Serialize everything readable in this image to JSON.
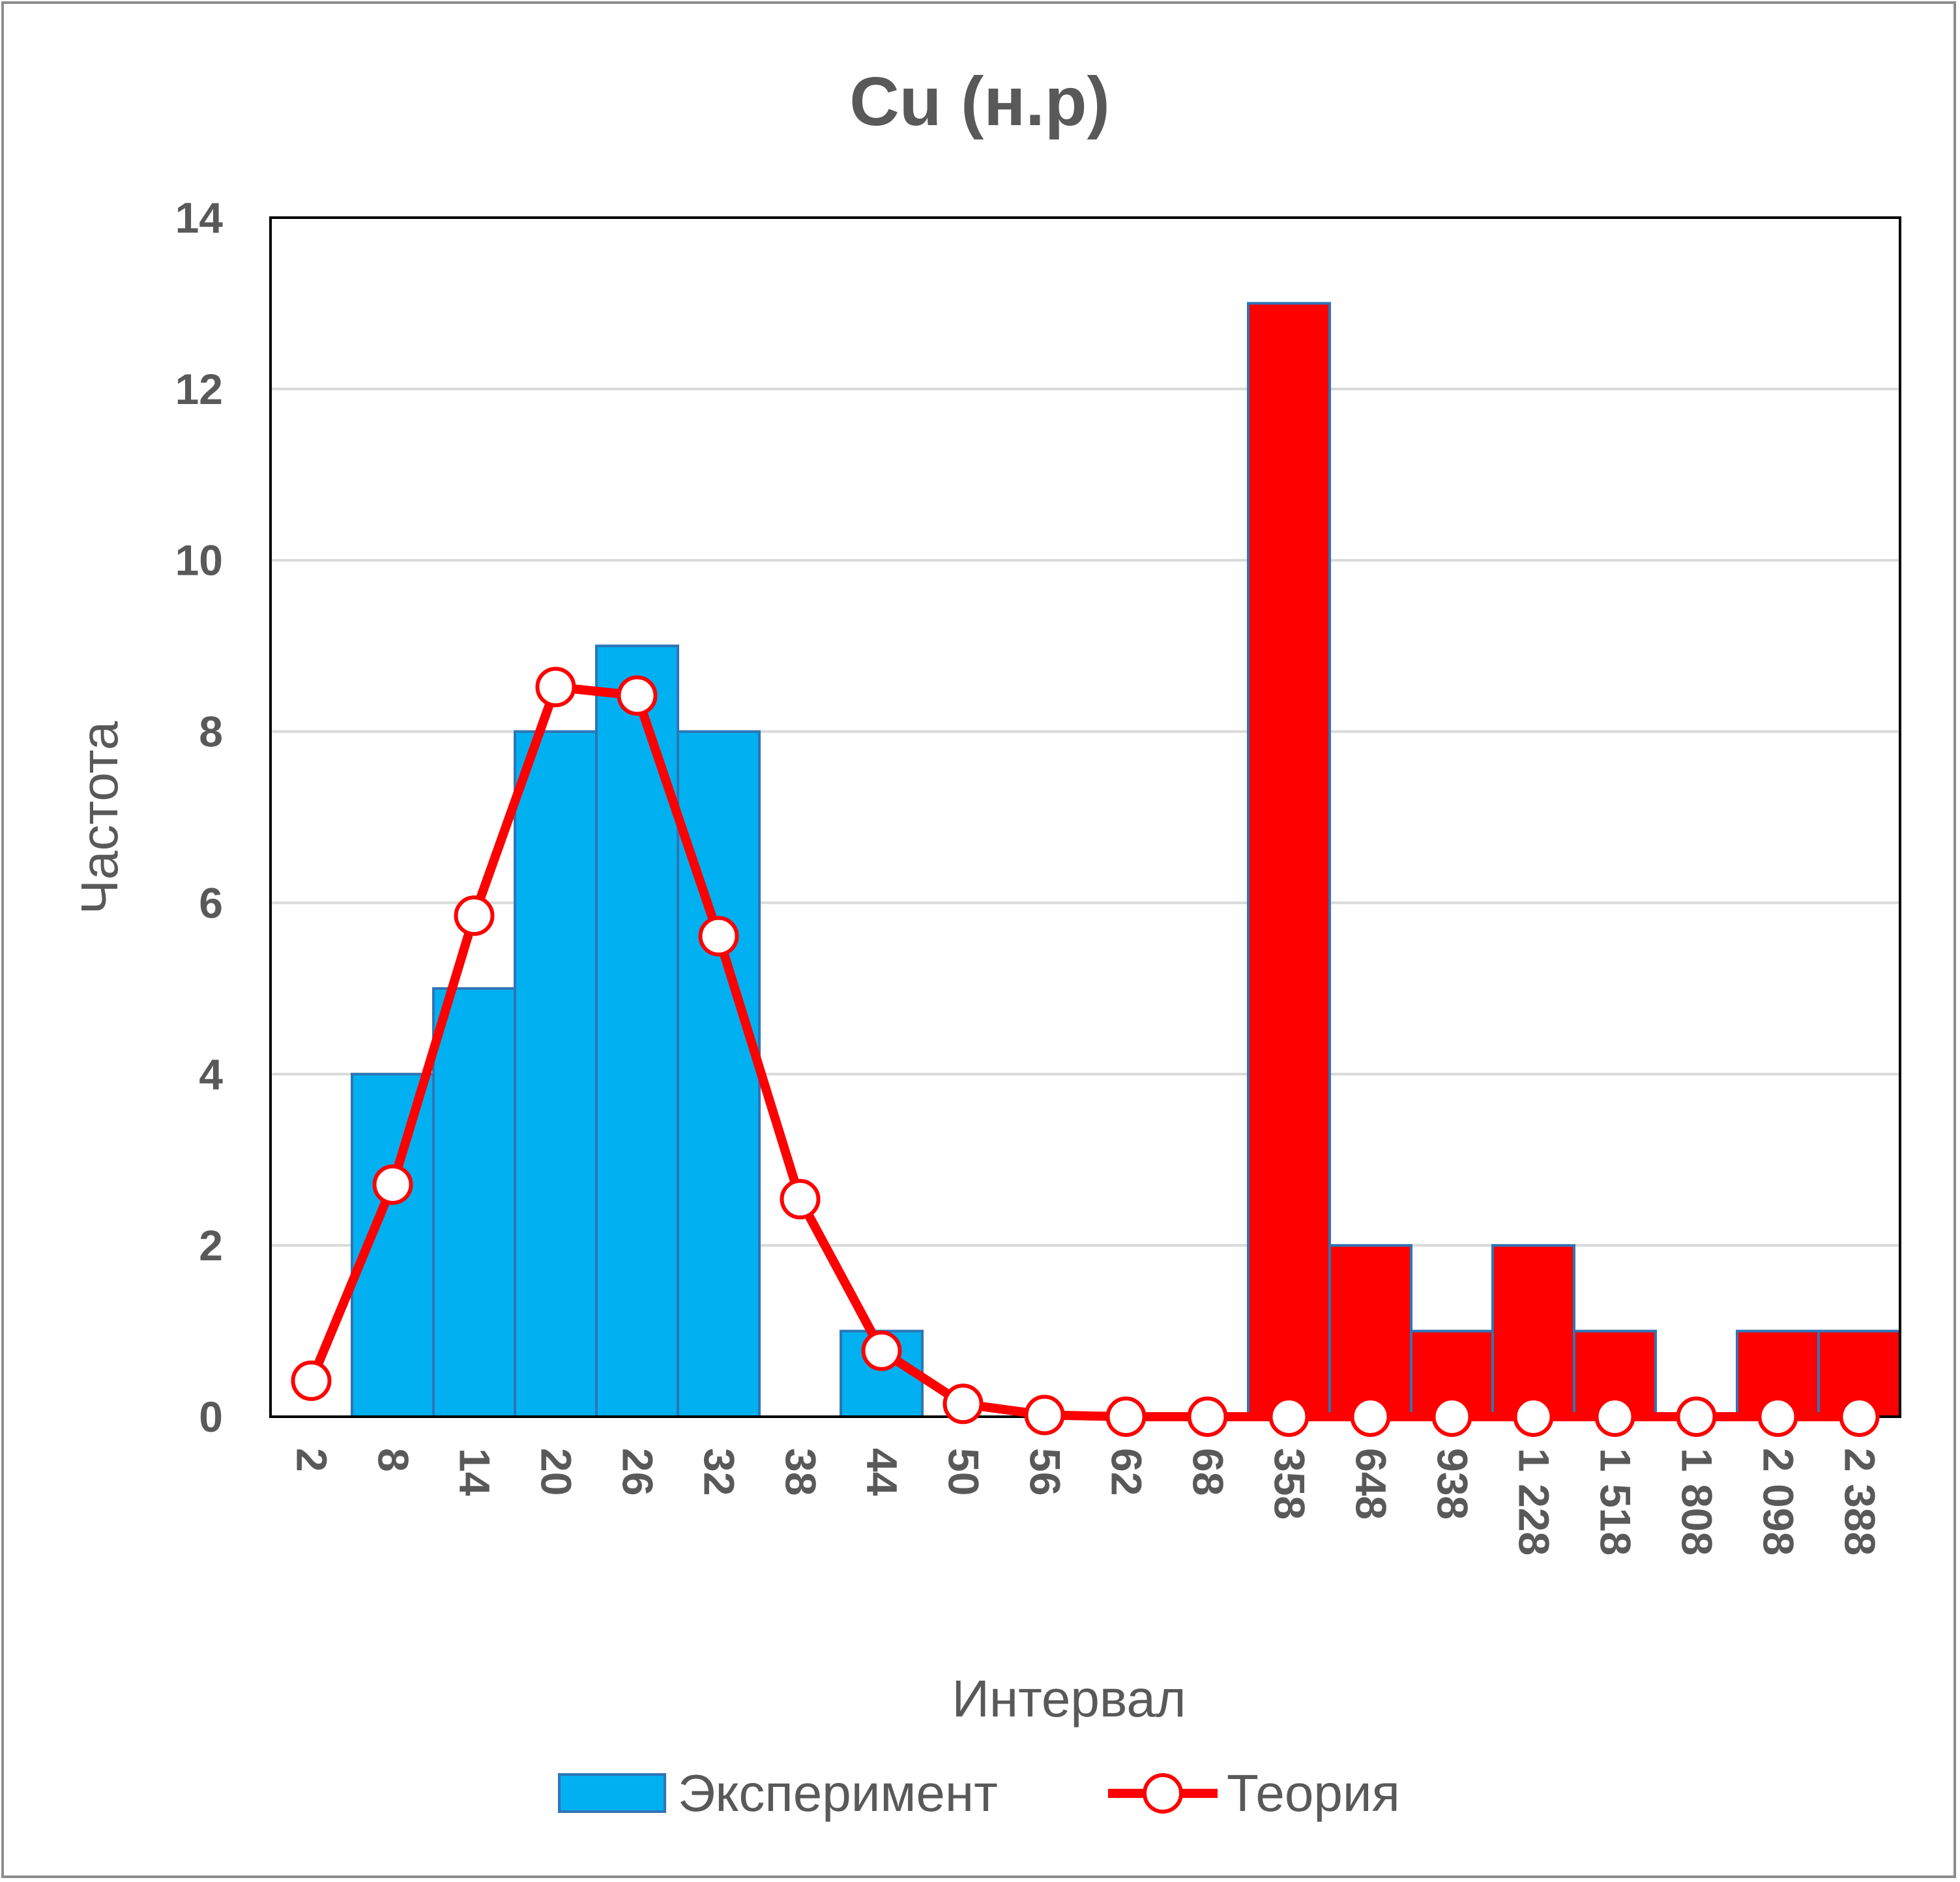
{
  "chart_data": {
    "type": "bar",
    "title": "Cu (н.р)",
    "xlabel": "Интервал",
    "ylabel": "Частота",
    "ylim": [
      0,
      14
    ],
    "yticks": [
      0,
      2,
      4,
      6,
      8,
      10,
      12,
      14
    ],
    "grid": true,
    "legend_position": "bottom",
    "categories": [
      "2",
      "8",
      "14",
      "20",
      "26",
      "32",
      "38",
      "44",
      "50",
      "56",
      "62",
      "68",
      "358",
      "648",
      "938",
      "1 228",
      "1 518",
      "1 808",
      "2 098",
      "2 388"
    ],
    "series": [
      {
        "name": "Эксперимент",
        "kind": "bar",
        "values": [
          0,
          4,
          5,
          8,
          9,
          8,
          0,
          1,
          0,
          0,
          0,
          0,
          13,
          2,
          1,
          2,
          1,
          0,
          1,
          1
        ],
        "colors": [
          "#00b0f0",
          "#00b0f0",
          "#00b0f0",
          "#00b0f0",
          "#00b0f0",
          "#00b0f0",
          "#00b0f0",
          "#00b0f0",
          "#00b0f0",
          "#00b0f0",
          "#00b0f0",
          "#00b0f0",
          "#ff0000",
          "#ff0000",
          "#ff0000",
          "#ff0000",
          "#ff0000",
          "#ff0000",
          "#ff0000",
          "#ff0000"
        ]
      },
      {
        "name": "Теория",
        "kind": "line",
        "color": "#ff0000",
        "values": [
          0.42,
          2.71,
          5.85,
          8.52,
          8.42,
          5.61,
          2.54,
          0.77,
          0.15,
          0.02,
          0,
          0,
          0,
          0,
          0,
          0,
          0,
          0,
          0,
          0
        ]
      }
    ],
    "colors": {
      "bar_primary": "#00b0f0",
      "bar_secondary": "#ff0000",
      "bar_border": "#2e75b6",
      "line": "#ff0000",
      "marker_fill": "#ffffff",
      "grid": "#d9d9d9",
      "text": "#595959"
    }
  }
}
